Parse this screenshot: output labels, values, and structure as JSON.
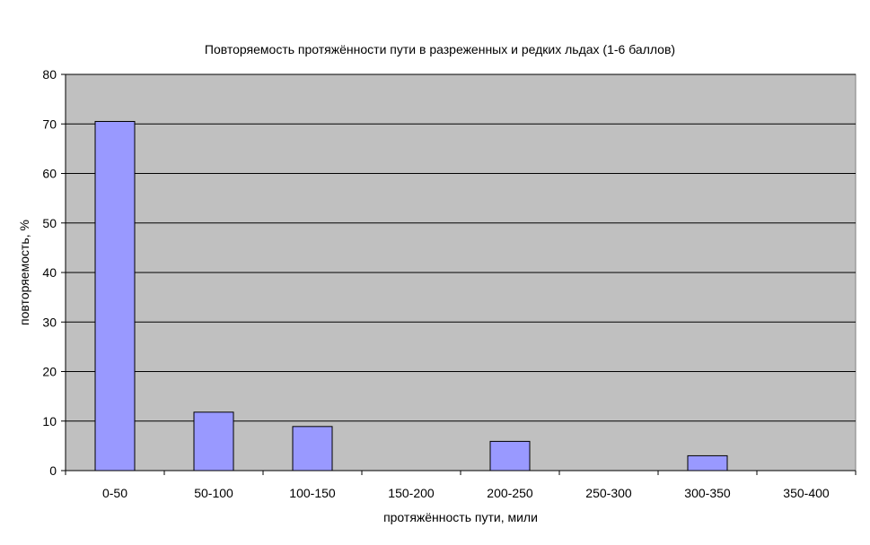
{
  "chart_data": {
    "type": "bar",
    "title": "Повторяемость протяжённости пути в разреженных и редких льдах (1-6 баллов)",
    "xlabel": "протяжённость пути, мили",
    "ylabel": "повторяемость, %",
    "categories": [
      "0-50",
      "50-100",
      "100-150",
      "150-200",
      "200-250",
      "250-300",
      "300-350",
      "350-400"
    ],
    "values": [
      70.5,
      11.8,
      8.9,
      0,
      5.9,
      0,
      3.0,
      0
    ],
    "ylim": [
      0,
      80
    ],
    "yticks": [
      "0",
      "10",
      "20",
      "30",
      "40",
      "50",
      "60",
      "70",
      "80"
    ],
    "grid": true,
    "legend": "none",
    "colors": {
      "bar_fill": "#9999FF",
      "bar_stroke": "#000000",
      "plot_background": "#C0C0C0",
      "gridline": "#000000"
    }
  }
}
